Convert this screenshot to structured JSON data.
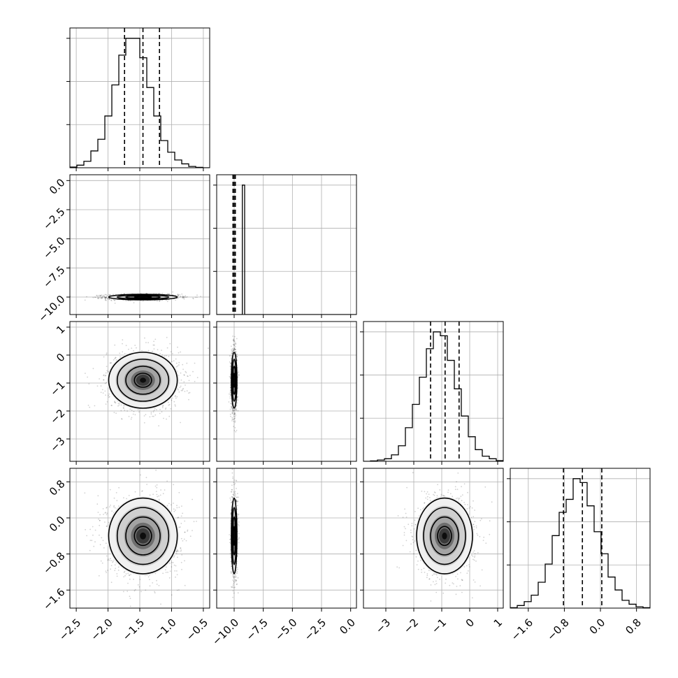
{
  "chart_data": {
    "type": "corner",
    "parameters": [
      {
        "median": -1.45,
        "sd": 0.27,
        "quantiles": [
          -1.74,
          -1.45,
          -1.19
        ],
        "range": [
          -2.6,
          -0.4
        ],
        "ticks": [
          -2.5,
          -2.0,
          -1.5,
          -1.0,
          -0.5
        ],
        "tick_labels": [
          "−2.5",
          "−2.0",
          "−1.5",
          "−1.0",
          "−0.5"
        ],
        "hist": [
          0.005,
          0.02,
          0.05,
          0.13,
          0.22,
          0.4,
          0.64,
          0.87,
          1.0,
          1.0,
          0.85,
          0.62,
          0.4,
          0.21,
          0.12,
          0.06,
          0.03,
          0.01,
          0.003,
          0.0
        ]
      },
      {
        "median": -10.0,
        "sd": 0.12,
        "quantiles": [
          -10.1,
          -10.0,
          -9.9
        ],
        "range": [
          -11.5,
          0.5
        ],
        "ticks": [
          -10.0,
          -7.5,
          -5.0,
          -2.5,
          0.0
        ],
        "tick_labels": [
          "−10.0",
          "−7.5",
          "−5.0",
          "−2.5",
          "0.0"
        ],
        "hist": [
          0.0,
          0.0,
          0.0,
          0.0,
          0.0,
          0.0,
          0.0,
          0.0,
          0.0,
          0.0,
          0.0,
          1.0,
          0.0,
          0.0,
          0.0,
          0.0,
          0.0,
          0.0,
          0.0,
          0.0,
          0.0,
          0.0,
          0.0,
          0.0,
          0.0,
          0.0,
          0.0,
          0.0,
          0.0,
          0.0,
          0.0,
          0.0,
          0.0,
          0.0,
          0.0,
          0.0,
          0.0,
          0.0,
          0.0,
          0.0,
          0.0,
          0.0,
          0.0,
          0.0,
          0.0,
          0.0,
          0.0,
          0.0,
          0.0,
          0.0,
          0.0,
          0.0,
          0.0,
          0.0,
          0.0,
          0.0,
          0.0,
          0.0,
          0.0,
          0.0
        ]
      },
      {
        "median": -0.9,
        "sd": 0.5,
        "quantiles": [
          -1.4,
          -0.88,
          -0.38
        ],
        "range": [
          -3.8,
          1.2
        ],
        "ticks": [
          -3,
          -2,
          -1,
          0,
          1
        ],
        "tick_labels": [
          "−3",
          "−2",
          "−1",
          "0",
          "1"
        ],
        "hist": [
          0.0,
          0.003,
          0.01,
          0.02,
          0.05,
          0.12,
          0.26,
          0.44,
          0.65,
          0.87,
          1.0,
          0.97,
          0.78,
          0.56,
          0.35,
          0.19,
          0.09,
          0.04,
          0.02,
          0.005
        ]
      },
      {
        "median": -0.4,
        "sd": 0.42,
        "quantiles": [
          -0.82,
          -0.4,
          0.03
        ],
        "range": [
          -2.0,
          1.1
        ],
        "ticks": [
          -1.6,
          -0.8,
          0.0,
          0.8
        ],
        "tick_labels": [
          "−1.6",
          "−0.8",
          "0.0",
          "0.8"
        ],
        "hist": [
          0.003,
          0.02,
          0.05,
          0.1,
          0.2,
          0.34,
          0.56,
          0.74,
          0.84,
          1.0,
          0.97,
          0.79,
          0.59,
          0.42,
          0.24,
          0.14,
          0.06,
          0.03,
          0.01,
          0.003
        ]
      }
    ],
    "y_tick_labels_row": {
      "1": [
        "0.0",
        "−2.5",
        "−5.0",
        "−7.5",
        "−10.0"
      ],
      "2": [
        "1",
        "0",
        "−1",
        "−2",
        "−3"
      ],
      "3": [
        "0.8",
        "0.0",
        "−0.8",
        "−1.6"
      ]
    },
    "y_tick_values_row": {
      "1": [
        0.0,
        -2.5,
        -5.0,
        -7.5,
        -10.0
      ],
      "2": [
        1,
        0,
        -1,
        -2,
        -3
      ],
      "3": [
        0.8,
        0.0,
        -0.8,
        -1.6
      ]
    },
    "grid": true,
    "contour_levels": [
      0.5,
      1.0,
      1.5,
      2.0
    ]
  }
}
